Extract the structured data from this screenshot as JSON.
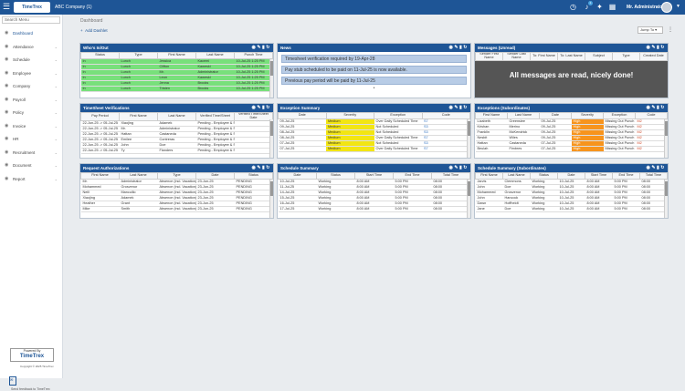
{
  "topbar": {
    "company": "ABC Company (1)",
    "user": "Mr. Administrator",
    "logo": "TimeTrex",
    "notif_count": "1"
  },
  "sidebar": {
    "search_placeholder": "Search Menu",
    "items": [
      {
        "label": "Dashboard",
        "icon": "dashboard-icon"
      },
      {
        "label": "Attendance",
        "icon": "clock-icon"
      },
      {
        "label": "Schedule",
        "icon": "calendar-icon"
      },
      {
        "label": "Employee",
        "icon": "users-icon"
      },
      {
        "label": "Company",
        "icon": "building-icon"
      },
      {
        "label": "Payroll",
        "icon": "dollar-icon"
      },
      {
        "label": "Policy",
        "icon": "flag-icon"
      },
      {
        "label": "Invoice",
        "icon": "invoice-icon"
      },
      {
        "label": "HR",
        "icon": "id-card-icon"
      },
      {
        "label": "Recruitment",
        "icon": "recruit-icon"
      },
      {
        "label": "Document",
        "icon": "document-icon"
      },
      {
        "label": "Report",
        "icon": "chart-icon"
      }
    ],
    "powered_top": "Powered By",
    "powered_brand": "TimeTrex",
    "copyright": "Copyright © 2025 TimeTrex",
    "feedback": "Send feedback to TimeTrex"
  },
  "main": {
    "breadcrumb": "Dashboard",
    "add_dashlet": "Add Dashlet",
    "jump_to": "Jump To"
  },
  "w1": {
    "title": "Who's In/Out",
    "headers": [
      "Status",
      "Type",
      "First Name",
      "Last Name",
      "Punch Time"
    ],
    "rows": [
      [
        "In",
        "Lunch",
        "Jessica",
        "Kacemi",
        "10-Jul-25 1:25 PM"
      ],
      [
        "In",
        "Lunch",
        "Clifton",
        "Kaweski",
        "10-Jul-25 1:25 PM"
      ],
      [
        "In",
        "Lunch",
        "Mr.",
        "Administrator",
        "10-Jul-25 1:25 PM"
      ],
      [
        "In",
        "Lunch",
        "Leon",
        "Kaweski",
        "10-Jul-25 1:25 PM"
      ],
      [
        "In",
        "Lunch",
        "Jenna",
        "Brooks",
        "10-Jul-25 1:25 PM"
      ],
      [
        "In",
        "Lunch",
        "Tristen",
        "Brooks",
        "10-Jul-25 1:25 PM"
      ]
    ]
  },
  "w2": {
    "title": "News",
    "items": [
      "Timesheet verification required by 19-Apr-28",
      "Pay stub scheduled to be paid on 11-Jul-25 is now available.",
      "Previous pay period will be paid by 11-Jul-25"
    ]
  },
  "w3": {
    "title": "Messages (Unread)",
    "headers": [
      "Sender First Name",
      "Sender Last Name",
      "To: First Name",
      "To: Last Name",
      "Subject",
      "Type",
      "Created Date"
    ],
    "empty_text": "All messages are read, nicely done!"
  },
  "w4": {
    "title": "TimeSheet Verifications",
    "headers": [
      "Pay Period",
      "First Name",
      "Last Name",
      "Verified Time/Sheet",
      "Verified Time/Sheet Date"
    ],
    "rows": [
      [
        "22-Jun-25 -> 05-Jul-25",
        "Xiaojing",
        "Adamek",
        "Pending - Employee & Su",
        ""
      ],
      [
        "22-Jun-25 -> 05-Jul-25",
        "Mr.",
        "Administrator",
        "Pending - Employee & Su",
        ""
      ],
      [
        "22-Jun-25 -> 05-Jul-25",
        "Hattan",
        "Castaneda",
        "Pending - Employee & Su",
        ""
      ],
      [
        "22-Jun-25 -> 05-Jul-25",
        "Emilee",
        "Contreras",
        "Pending - Employee & Su",
        ""
      ],
      [
        "22-Jun-25 -> 05-Jul-25",
        "John",
        "Doe",
        "Pending - Employee & Su",
        ""
      ],
      [
        "22-Jun-25 -> 05-Jul-25",
        "Ty",
        "Flanders",
        "Pending - Employee & Su",
        ""
      ]
    ]
  },
  "w5": {
    "title": "Exception Summary",
    "headers": [
      "Date",
      "Severity",
      "Exception",
      "Code"
    ],
    "rows": [
      [
        "09-Jul-25",
        "Medium",
        "Over Daily Scheduled Time",
        "S7"
      ],
      [
        "09-Jul-25",
        "Medium",
        "Not Scheduled",
        "S3"
      ],
      [
        "08-Jul-25",
        "Medium",
        "Not Scheduled",
        "S3"
      ],
      [
        "08-Jul-25",
        "Medium",
        "Over Daily Scheduled Time",
        "S7"
      ],
      [
        "07-Jul-25",
        "Medium",
        "Not Scheduled",
        "S3"
      ],
      [
        "07-Jul-25",
        "Medium",
        "Over Daily Scheduled Time",
        "S7"
      ]
    ]
  },
  "w6": {
    "title": "Exceptions (Subordinates)",
    "headers": [
      "First Name",
      "Last Name",
      "Date",
      "Severity",
      "Exception",
      "Code"
    ],
    "rows": [
      [
        "Lizabeth",
        "Greenslee",
        "09-Jul-25",
        "High",
        "Missing Out Punch",
        "M2"
      ],
      [
        "Krishan",
        "Merino",
        "09-Jul-25",
        "High",
        "Missing Out Punch",
        "M2"
      ],
      [
        "Franklin",
        "McKendrick",
        "09-Jul-25",
        "High",
        "Missing Out Punch",
        "M2"
      ],
      [
        "Nesbit",
        "Wiles",
        "09-Jul-25",
        "High",
        "Missing Out Punch",
        "M2"
      ],
      [
        "Hattan",
        "Castaneda",
        "07-Jul-25",
        "High",
        "Missing Out Punch",
        "M2"
      ],
      [
        "Beulah",
        "Fimbres",
        "07-Jul-25",
        "High",
        "Missing Out Punch",
        "M2"
      ]
    ]
  },
  "w7": {
    "title": "Request Authorizations",
    "headers": [
      "First Name",
      "Last Name",
      "Type",
      "Date",
      "Status"
    ],
    "rows": [
      [
        "Mr.",
        "Administrator",
        "Absence (incl. Vacation)",
        "23-Jun-25",
        "PENDING"
      ],
      [
        "Mohammed",
        "Grosvenor",
        "Absence (incl. Vacation)",
        "23-Jun-25",
        "PENDING"
      ],
      [
        "Neill",
        "Mancuillo",
        "Absence (incl. Vacation)",
        "23-Jun-25",
        "PENDING"
      ],
      [
        "Xiaojing",
        "Adamek",
        "Absence (incl. Vacation)",
        "23-Jun-25",
        "PENDING"
      ],
      [
        "Heather",
        "Grant",
        "Absence (incl. Vacation)",
        "23-Jun-25",
        "PENDING"
      ],
      [
        "Mike",
        "Smith",
        "Absence (incl. Vacation)",
        "23-Jun-25",
        "PENDING"
      ]
    ]
  },
  "w8": {
    "title": "Schedule Summary",
    "headers": [
      "Date",
      "Status",
      "Start Time",
      "End Time",
      "Total Time"
    ],
    "rows": [
      [
        "10-Jul-25",
        "Working",
        "8:00 AM",
        "5:00 PM",
        "08:00"
      ],
      [
        "11-Jul-25",
        "Working",
        "8:00 AM",
        "5:00 PM",
        "08:00"
      ],
      [
        "14-Jul-25",
        "Working",
        "8:00 AM",
        "5:00 PM",
        "08:00"
      ],
      [
        "15-Jul-25",
        "Working",
        "8:00 AM",
        "5:00 PM",
        "08:00"
      ],
      [
        "16-Jul-25",
        "Working",
        "8:00 AM",
        "5:00 PM",
        "08:00"
      ],
      [
        "17-Jul-25",
        "Working",
        "8:00 AM",
        "5:00 PM",
        "08:00"
      ]
    ]
  },
  "w9": {
    "title": "Schedule Summary (Subordinates)",
    "headers": [
      "First Name",
      "Last Name",
      "Status",
      "Date",
      "Start Time",
      "End Time",
      "Total Time"
    ],
    "rows": [
      [
        "Jarvis",
        "Clemmons",
        "Working",
        "10-Jul-25",
        "8:00 AM",
        "5:00 PM",
        "08:00"
      ],
      [
        "John",
        "Doe",
        "Working",
        "10-Jul-25",
        "8:00 AM",
        "5:00 PM",
        "08:00"
      ],
      [
        "Mohammed",
        "Grosvenor",
        "Working",
        "10-Jul-25",
        "8:00 AM",
        "5:00 PM",
        "08:00"
      ],
      [
        "John",
        "Hancock",
        "Working",
        "10-Jul-25",
        "8:00 AM",
        "5:00 PM",
        "08:00"
      ],
      [
        "Dawn",
        "Hoffheidt",
        "Working",
        "10-Jul-25",
        "8:00 AM",
        "5:00 PM",
        "08:00"
      ],
      [
        "Jane",
        "Doe",
        "Working",
        "10-Jul-25",
        "8:00 AM",
        "5:00 PM",
        "08:00"
      ]
    ]
  }
}
